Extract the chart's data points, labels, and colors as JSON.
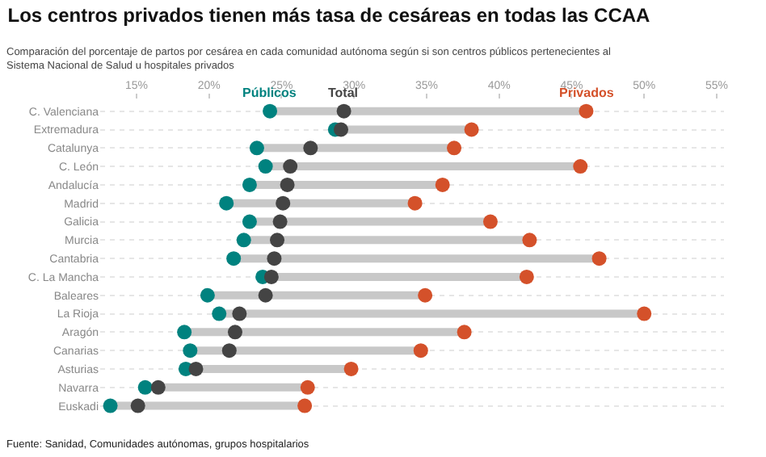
{
  "chart_data": {
    "type": "scatter",
    "title": "Los centros privados tienen más tasa de cesáreas en todas las CCAA",
    "subtitle": "Comparación del porcentaje de partos por cesárea en cada comunidad autónoma según si son centros públicos pertenecientes al Sistema Nacional de Salud u hospitales privados",
    "annotations": [
      "Fuente: Sanidad, Comunidades autónomas, grupos hospitalarios"
    ],
    "categories": [
      "C. Valenciana",
      "Extremadura",
      "Catalunya",
      "C. León",
      "Andalucía",
      "Madrid",
      "Galicia",
      "Murcia",
      "Cantabria",
      "C. La Mancha",
      "Baleares",
      "La Rioja",
      "Aragón",
      "Canarias",
      "Asturias",
      "Navarra",
      "Euskadi"
    ],
    "orientation": "horizontal",
    "series": [
      {
        "name": "Públicos",
        "color": "#00827f",
        "values": [
          24.2,
          28.7,
          23.3,
          23.9,
          22.8,
          21.2,
          22.8,
          22.4,
          21.7,
          23.7,
          19.9,
          20.7,
          18.3,
          18.7,
          18.4,
          15.6,
          13.2
        ]
      },
      {
        "name": "Total",
        "color": "#444444",
        "values": [
          29.3,
          29.1,
          27.0,
          25.6,
          25.4,
          25.1,
          24.9,
          24.7,
          24.5,
          24.3,
          23.9,
          22.1,
          21.8,
          21.4,
          19.1,
          16.5,
          15.1
        ]
      },
      {
        "name": "Privados",
        "color": "#d4512a",
        "values": [
          46.0,
          38.1,
          36.9,
          45.6,
          36.1,
          34.2,
          39.4,
          42.1,
          46.9,
          41.9,
          34.9,
          50.0,
          37.6,
          34.6,
          29.8,
          26.8,
          26.6
        ]
      }
    ],
    "xlim": [
      12.5,
      55.5
    ],
    "xticks": [
      {
        "value": 15,
        "label": "15%"
      },
      {
        "value": 20,
        "label": "20%"
      },
      {
        "value": 25,
        "label": "25%"
      },
      {
        "value": 30,
        "label": "30%"
      },
      {
        "value": 35,
        "label": "35%"
      },
      {
        "value": 40,
        "label": "40%"
      },
      {
        "value": 45,
        "label": "45%"
      },
      {
        "value": 50,
        "label": "50%"
      },
      {
        "value": 55,
        "label": "55%"
      }
    ],
    "grid": "y",
    "legend": false,
    "marker": "circle"
  }
}
